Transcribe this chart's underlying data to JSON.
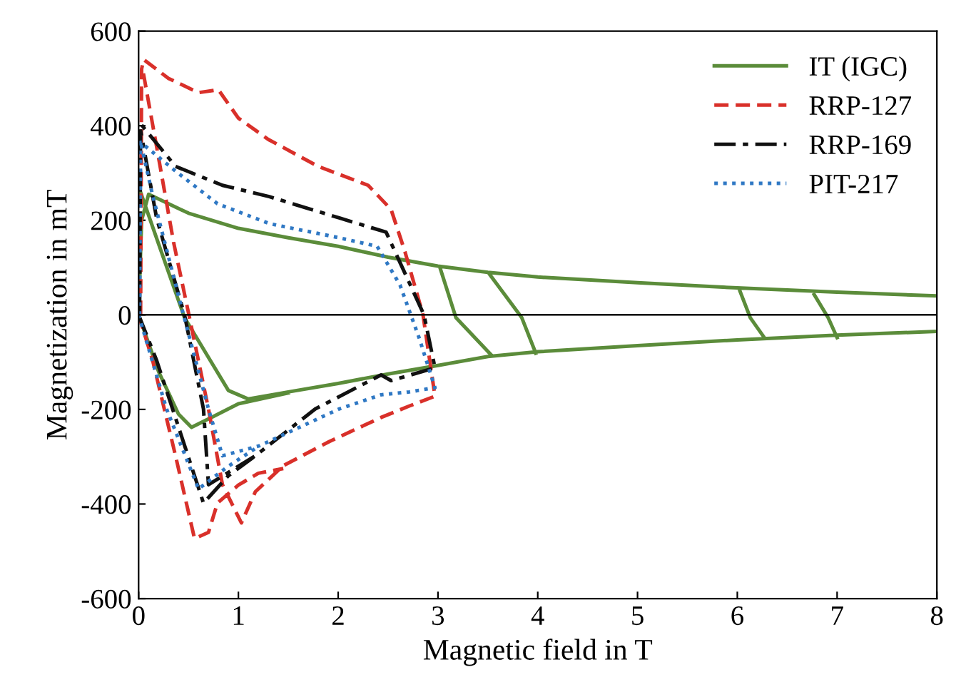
{
  "chart_data": {
    "type": "line",
    "xlabel": "Magnetic field in T",
    "ylabel": "Magnetization in mT",
    "xlim": [
      0,
      8
    ],
    "ylim": [
      -600,
      600
    ],
    "xticks": [
      0,
      1,
      2,
      3,
      4,
      5,
      6,
      7,
      8
    ],
    "yticks": [
      -600,
      -400,
      -200,
      0,
      200,
      400,
      600
    ],
    "grid": false,
    "legend": "top right",
    "marker": "none",
    "ref_lines": [
      {
        "axis": "y",
        "value": 0,
        "color": "#000000",
        "line_style": "solid"
      }
    ],
    "series": [
      {
        "name": "IT (IGC)",
        "color": "#5b8c3a",
        "line_style": "solid",
        "x": [
          0,
          0.03,
          0.1,
          0.5,
          1,
          1.5,
          2,
          2.5,
          3,
          3.5,
          4,
          5,
          6,
          7,
          8,
          null,
          8,
          7,
          6,
          5,
          4,
          3.5,
          3,
          2.5,
          2,
          1.5,
          1.1,
          0.9,
          0.46,
          0.2,
          0.02,
          null,
          0,
          0.2,
          0.4,
          0.53,
          0.75,
          1.0,
          1.5,
          null,
          3.02,
          3.18,
          3.53,
          null,
          3.52,
          3.84,
          3.98,
          null,
          6.02,
          6.13,
          6.27,
          null,
          6.77,
          6.91,
          7.0
        ],
        "values": [
          0,
          200,
          255,
          215,
          183,
          163,
          145,
          122,
          103,
          90,
          80,
          68,
          57,
          48,
          40,
          null,
          -35,
          -43,
          -53,
          -65,
          -78,
          -88,
          -107,
          -125,
          -145,
          -163,
          -178,
          -160,
          -6,
          150,
          259,
          null,
          0,
          -120,
          -210,
          -238,
          -215,
          -188,
          -165,
          null,
          100,
          -6,
          -84,
          null,
          85,
          -6,
          -81,
          null,
          54,
          -6,
          -48,
          null,
          43,
          -6,
          -48
        ]
      },
      {
        "name": "RRP-127",
        "color": "#d9302a",
        "line_style": "dashed",
        "x": [
          0.02,
          0.03,
          0.05,
          0.3,
          0.6,
          0.8,
          1.0,
          1.3,
          1.8,
          2.3,
          2.53,
          2.67,
          2.85,
          2.97,
          2.71,
          2.43,
          1.91,
          1.45,
          1.17,
          1.03,
          0.84,
          0.7,
          0.51,
          0.35,
          0.18,
          0.04,
          null,
          0,
          0.14,
          0.37,
          0.56,
          0.7,
          0.79,
          1.0,
          1.2,
          1.45
        ],
        "values": [
          0,
          520,
          540,
          500,
          470,
          476,
          416,
          371,
          314,
          274,
          223,
          133,
          0,
          -172,
          -193,
          -217,
          -268,
          -319,
          -374,
          -440,
          -359,
          -199,
          -6,
          154,
          356,
          520,
          null,
          0,
          -96,
          -298,
          -473,
          -460,
          -398,
          -360,
          -335,
          -325
        ]
      },
      {
        "name": "RRP-169",
        "color": "#111111",
        "line_style": "dashdot",
        "x": [
          0.01,
          0.02,
          0.37,
          0.84,
          1.31,
          2.01,
          2.48,
          2.86,
          2.97,
          2.53,
          2.43,
          1.77,
          1.17,
          0.7,
          0.65,
          0.46,
          0.18,
          0.02,
          null,
          0,
          0.18,
          0.65,
          0.9,
          1.17
        ],
        "values": [
          0,
          404,
          314,
          274,
          250,
          205,
          175,
          0,
          -112,
          -139,
          -127,
          -199,
          -298,
          -359,
          -199,
          0,
          205,
          390,
          null,
          0,
          -96,
          -398,
          -340,
          -298
        ]
      },
      {
        "name": "PIT-217",
        "color": "#2f78c4",
        "line_style": "dotted",
        "x": [
          0.01,
          0.02,
          0.37,
          0.79,
          1.31,
          2.01,
          2.39,
          2.62,
          2.81,
          2.97,
          2.71,
          2.43,
          2.01,
          1.21,
          0.84,
          0.7,
          0.42,
          0.14,
          0.02,
          null,
          0,
          0.28,
          0.6,
          0.9,
          1.21
        ],
        "values": [
          0,
          365,
          304,
          235,
          193,
          163,
          145,
          63,
          -48,
          -154,
          -163,
          -169,
          -199,
          -277,
          -298,
          -199,
          24,
          253,
          365,
          null,
          0,
          -199,
          -368,
          -320,
          -277
        ]
      }
    ]
  }
}
